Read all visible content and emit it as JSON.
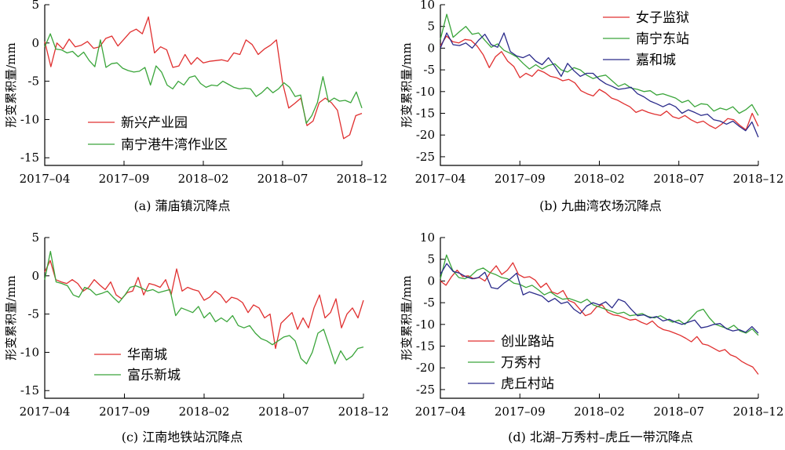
{
  "chart_data": [
    {
      "type": "line",
      "caption": "(a) 蒲庙镇沉降点",
      "ylabel": "形变累积量/mm",
      "xlim": [
        0,
        1
      ],
      "ylim": [
        -16,
        5
      ],
      "yticks": [
        5,
        0,
        -5,
        -10,
        -15
      ],
      "xticks": [
        {
          "label": "2017–04",
          "t": 0.0
        },
        {
          "label": "2017–09",
          "t": 0.25
        },
        {
          "label": "2018–02",
          "t": 0.5
        },
        {
          "label": "2018–07",
          "t": 0.75
        },
        {
          "label": "2018–12",
          "t": 1.0
        }
      ],
      "legend_position": "bottom-left",
      "series": [
        {
          "name": "新兴产业园",
          "color": "#e03030",
          "values": [
            0.2,
            -3.1,
            0.0,
            -0.8,
            0.5,
            -0.5,
            -0.3,
            0.2,
            -0.7,
            -0.5,
            0.6,
            0.9,
            -0.4,
            0.5,
            1.4,
            1.8,
            1.2,
            3.4,
            -1.3,
            -0.5,
            -0.9,
            -3.2,
            -3.0,
            -1.5,
            -2.8,
            -1.9,
            -2.6,
            -2.4,
            -2.3,
            -2.2,
            -2.4,
            -1.3,
            -1.5,
            0.4,
            -0.2,
            -1.5,
            -0.8,
            -0.3,
            0.4,
            -5.2,
            -8.5,
            -7.9,
            -7.2,
            -10.8,
            -10.2,
            -7.8,
            -7.2,
            -7.8,
            -8.8,
            -12.5,
            -12.0,
            -9.5,
            -9.2
          ]
        },
        {
          "name": "南宁港牛湾作业区",
          "color": "#3aa53a",
          "values": [
            -0.5,
            1.2,
            -0.8,
            -0.9,
            -1.3,
            -1.1,
            -1.8,
            -1.2,
            -2.3,
            -3.1,
            0.4,
            -3.2,
            -2.7,
            -2.6,
            -3.3,
            -3.6,
            -3.8,
            -3.7,
            -3.2,
            -5.5,
            -3.0,
            -3.8,
            -5.5,
            -6.0,
            -5.0,
            -5.5,
            -4.5,
            -4.3,
            -5.3,
            -5.8,
            -5.5,
            -5.6,
            -5.0,
            -5.4,
            -5.8,
            -6.0,
            -5.9,
            -6.0,
            -7.0,
            -6.5,
            -5.8,
            -6.5,
            -6.0,
            -5.2,
            -5.8,
            -7.0,
            -6.8,
            -10.5,
            -9.5,
            -7.8,
            -4.4,
            -7.7,
            -7.2,
            -7.6,
            -7.5,
            -7.8,
            -6.4,
            -8.5
          ]
        }
      ]
    },
    {
      "type": "line",
      "caption": "(b) 九曲湾农场沉降点",
      "ylabel": "形变累积量/mm",
      "xlim": [
        0,
        1
      ],
      "ylim": [
        -27,
        10
      ],
      "yticks": [
        10,
        5,
        0,
        -5,
        -10,
        -15,
        -20,
        -25
      ],
      "xticks": [
        {
          "label": "2017–04",
          "t": 0.0
        },
        {
          "label": "2017–09",
          "t": 0.25
        },
        {
          "label": "2018–02",
          "t": 0.5
        },
        {
          "label": "2018–07",
          "t": 0.75
        },
        {
          "label": "2018–12",
          "t": 1.0
        }
      ],
      "legend_position": "top-right",
      "series": [
        {
          "name": "女子监狱",
          "color": "#e03030",
          "values": [
            0.5,
            2.8,
            1.5,
            1.2,
            2.0,
            1.8,
            0.5,
            -1.5,
            -4.5,
            -2.0,
            -0.8,
            -3.0,
            -4.2,
            -6.8,
            -5.8,
            -6.5,
            -5.0,
            -5.6,
            -6.5,
            -6.8,
            -7.5,
            -7.2,
            -8.0,
            -9.8,
            -10.5,
            -11.0,
            -9.5,
            -10.3,
            -11.5,
            -12.0,
            -12.8,
            -13.5,
            -14.8,
            -14.2,
            -14.8,
            -15.2,
            -15.5,
            -14.5,
            -15.8,
            -16.2,
            -15.5,
            -16.5,
            -17.2,
            -16.8,
            -17.8,
            -18.5,
            -17.5,
            -16.2,
            -16.5,
            -17.8,
            -18.8,
            -15.0,
            -18.0
          ]
        },
        {
          "name": "南宁东站",
          "color": "#3aa53a",
          "values": [
            2.0,
            7.8,
            2.5,
            3.8,
            5.0,
            3.2,
            3.5,
            1.8,
            0.2,
            1.0,
            -0.5,
            -1.2,
            -2.0,
            -3.5,
            -4.8,
            -3.8,
            -4.8,
            -4.0,
            -3.6,
            -5.0,
            -5.5,
            -4.5,
            -5.0,
            -6.2,
            -7.0,
            -6.5,
            -6.2,
            -7.5,
            -8.8,
            -8.2,
            -9.2,
            -9.5,
            -10.0,
            -9.8,
            -10.8,
            -10.5,
            -11.0,
            -11.5,
            -12.5,
            -12.0,
            -13.5,
            -12.8,
            -13.0,
            -14.5,
            -13.8,
            -14.2,
            -13.5,
            -15.0,
            -14.2,
            -13.0,
            -15.5
          ]
        },
        {
          "name": "嘉和城",
          "color": "#2a2a8a",
          "values": [
            0.0,
            3.5,
            0.8,
            0.6,
            1.2,
            0.0,
            1.8,
            3.2,
            0.8,
            0.2,
            3.5,
            -0.8,
            -1.8,
            -2.2,
            -1.5,
            -3.0,
            -3.8,
            -2.2,
            -4.2,
            -6.5,
            -3.5,
            -5.2,
            -6.5,
            -5.8,
            -5.8,
            -7.2,
            -8.2,
            -8.8,
            -9.5,
            -9.3,
            -9.0,
            -10.5,
            -11.2,
            -12.2,
            -12.8,
            -13.5,
            -12.8,
            -13.5,
            -15.0,
            -14.2,
            -14.8,
            -15.5,
            -15.2,
            -16.5,
            -16.8,
            -17.5,
            -16.8,
            -18.0,
            -19.0,
            -17.0,
            -20.5
          ]
        }
      ]
    },
    {
      "type": "line",
      "caption": "(c) 江南地铁站沉降点",
      "ylabel": "形变累积量/mm",
      "xlim": [
        0,
        1
      ],
      "ylim": [
        -16,
        5
      ],
      "yticks": [
        5,
        0,
        -5,
        -10,
        -15
      ],
      "xticks": [
        {
          "label": "2017–04",
          "t": 0.0
        },
        {
          "label": "2017–09",
          "t": 0.25
        },
        {
          "label": "2018–02",
          "t": 0.5
        },
        {
          "label": "2018–07",
          "t": 0.75
        },
        {
          "label": "2018–12",
          "t": 1.0
        }
      ],
      "legend_position": "bottom-left",
      "series": [
        {
          "name": "华南城",
          "color": "#e03030",
          "values": [
            0.5,
            2.0,
            -0.5,
            -0.8,
            -1.0,
            -0.5,
            -1.0,
            -2.0,
            -1.5,
            -0.5,
            -1.2,
            -1.8,
            -0.8,
            -2.5,
            -3.0,
            -2.2,
            -2.0,
            -0.2,
            -2.5,
            -1.0,
            -1.2,
            -1.5,
            -0.5,
            -2.5,
            0.9,
            -2.0,
            -1.5,
            -1.8,
            -2.0,
            -3.2,
            -2.8,
            -2.0,
            -2.5,
            -3.5,
            -2.8,
            -3.0,
            -3.5,
            -4.8,
            -3.8,
            -4.2,
            -5.5,
            -5.0,
            -9.5,
            -6.2,
            -5.5,
            -4.8,
            -7.0,
            -5.5,
            -6.8,
            -4.2,
            -2.5,
            -5.5,
            -4.8,
            -3.0,
            -6.8,
            -5.0,
            -4.2,
            -5.5,
            -3.2
          ]
        },
        {
          "name": "富乐新城",
          "color": "#3aa53a",
          "values": [
            -0.5,
            3.2,
            -0.8,
            -1.0,
            -1.3,
            -2.5,
            -2.8,
            -1.5,
            -1.8,
            -2.5,
            -2.3,
            -2.0,
            -2.8,
            -3.5,
            -2.6,
            -1.5,
            -1.3,
            -1.6,
            -2.0,
            -1.8,
            -2.2,
            -2.0,
            -1.8,
            -5.2,
            -4.2,
            -4.5,
            -4.8,
            -4.0,
            -5.5,
            -4.8,
            -6.0,
            -5.5,
            -6.0,
            -5.2,
            -6.5,
            -6.8,
            -6.5,
            -7.5,
            -8.2,
            -8.5,
            -9.0,
            -8.5,
            -8.0,
            -7.8,
            -8.5,
            -10.8,
            -11.5,
            -10.0,
            -7.5,
            -7.0,
            -9.2,
            -11.5,
            -9.8,
            -11.0,
            -10.5,
            -9.5,
            -9.3
          ]
        }
      ]
    },
    {
      "type": "line",
      "caption": "(d) 北湖–万秀村–虎丘一带沉降点",
      "ylabel": "形变累积量/mm",
      "xlim": [
        0,
        1
      ],
      "ylim": [
        -27,
        10
      ],
      "yticks": [
        10,
        5,
        0,
        -5,
        -10,
        -15,
        -20,
        -25
      ],
      "xticks": [
        {
          "label": "2017–04",
          "t": 0.0
        },
        {
          "label": "2017–09",
          "t": 0.25
        },
        {
          "label": "2018–02",
          "t": 0.5
        },
        {
          "label": "2018–07",
          "t": 0.75
        },
        {
          "label": "2018–12",
          "t": 1.0
        }
      ],
      "legend_position": "bottom-left",
      "series": [
        {
          "name": "创业路站",
          "color": "#e03030",
          "values": [
            0.0,
            -1.0,
            1.0,
            2.5,
            1.0,
            1.2,
            0.5,
            0.8,
            0.0,
            2.0,
            3.5,
            1.5,
            2.5,
            4.2,
            1.5,
            0.8,
            1.0,
            0.2,
            -1.5,
            -0.5,
            -2.5,
            -3.0,
            -2.2,
            -4.5,
            -5.0,
            -6.5,
            -8.0,
            -7.5,
            -6.0,
            -5.5,
            -7.2,
            -7.8,
            -8.0,
            -8.5,
            -9.0,
            -8.8,
            -9.5,
            -10.0,
            -9.2,
            -10.5,
            -11.2,
            -11.5,
            -12.0,
            -12.5,
            -13.2,
            -14.0,
            -12.8,
            -14.5,
            -14.8,
            -15.5,
            -16.2,
            -15.8,
            -17.0,
            -17.5,
            -18.5,
            -19.2,
            -19.8,
            -21.5
          ]
        },
        {
          "name": "万秀村",
          "color": "#3aa53a",
          "values": [
            0.5,
            6.0,
            2.5,
            0.8,
            0.5,
            1.2,
            2.5,
            3.0,
            2.0,
            1.5,
            0.8,
            0.5,
            -0.5,
            -0.8,
            -1.5,
            -1.0,
            -2.0,
            -3.2,
            -2.5,
            -3.5,
            -4.2,
            -4.0,
            -4.5,
            -5.0,
            -4.2,
            -5.5,
            -6.0,
            -6.5,
            -7.0,
            -7.5,
            -7.2,
            -8.0,
            -7.8,
            -7.5,
            -8.2,
            -8.5,
            -8.0,
            -8.8,
            -9.5,
            -9.0,
            -10.0,
            -8.5,
            -7.0,
            -6.5,
            -8.5,
            -10.0,
            -10.5,
            -11.0,
            -10.2,
            -11.5,
            -12.0,
            -11.0,
            -12.5
          ]
        },
        {
          "name": "虎丘村站",
          "color": "#2a2a8a",
          "values": [
            1.5,
            4.0,
            2.2,
            1.8,
            1.0,
            0.5,
            0.8,
            2.0,
            -1.5,
            -1.8,
            -0.5,
            0.5,
            1.8,
            -3.2,
            -2.5,
            -3.0,
            -3.5,
            -4.8,
            -4.0,
            -5.2,
            -4.8,
            -6.5,
            -7.5,
            -5.8,
            -5.0,
            -5.5,
            -4.8,
            -6.2,
            -4.2,
            -4.8,
            -6.5,
            -8.0,
            -7.8,
            -8.5,
            -8.2,
            -9.2,
            -8.8,
            -9.5,
            -10.0,
            -9.5,
            -9.0,
            -10.8,
            -10.5,
            -10.0,
            -9.8,
            -11.0,
            -11.5,
            -11.2,
            -11.8,
            -10.5,
            -12.0
          ]
        }
      ]
    }
  ]
}
